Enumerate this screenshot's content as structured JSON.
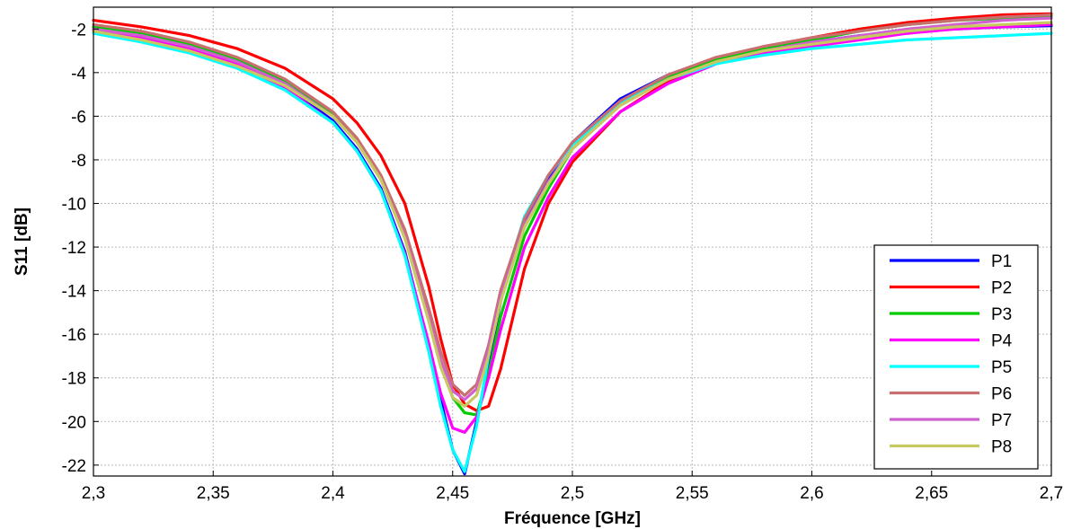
{
  "chart_data": {
    "type": "line",
    "title": "",
    "xlabel": "Fréquence [GHz]",
    "ylabel": "S11 [dB]",
    "xlim": [
      2.3,
      2.7
    ],
    "ylim": [
      -22.5,
      -1
    ],
    "xticks": [
      2.3,
      2.35,
      2.4,
      2.45,
      2.5,
      2.55,
      2.6,
      2.65,
      2.7
    ],
    "xtick_labels": [
      "2,3",
      "2,35",
      "2,4",
      "2,45",
      "2,5",
      "2,55",
      "2,6",
      "2,65",
      "2,7"
    ],
    "yticks": [
      -2,
      -4,
      -6,
      -8,
      -10,
      -12,
      -14,
      -16,
      -18,
      -20,
      -22
    ],
    "ytick_labels": [
      "-2",
      "-4",
      "-6",
      "-8",
      "-10",
      "-12",
      "-14",
      "-16",
      "-18",
      "-20",
      "-22"
    ],
    "grid": true,
    "legend_position": "bottom-right",
    "x": [
      2.3,
      2.32,
      2.34,
      2.36,
      2.38,
      2.4,
      2.41,
      2.42,
      2.43,
      2.44,
      2.445,
      2.45,
      2.455,
      2.46,
      2.465,
      2.47,
      2.48,
      2.49,
      2.5,
      2.52,
      2.54,
      2.56,
      2.58,
      2.6,
      2.62,
      2.64,
      2.66,
      2.68,
      2.7
    ],
    "series": [
      {
        "name": "P1",
        "color": "#0000ff",
        "values": [
          -2.0,
          -2.3,
          -2.8,
          -3.5,
          -4.6,
          -6.2,
          -7.5,
          -9.3,
          -12.2,
          -16.5,
          -19.0,
          -21.3,
          -22.4,
          -20.0,
          -17.5,
          -14.5,
          -10.8,
          -8.8,
          -7.2,
          -5.2,
          -4.1,
          -3.4,
          -2.9,
          -2.6,
          -2.3,
          -2.1,
          -2.0,
          -1.9,
          -1.85
        ]
      },
      {
        "name": "P2",
        "color": "#ff0000",
        "values": [
          -1.6,
          -1.9,
          -2.3,
          -2.9,
          -3.8,
          -5.2,
          -6.3,
          -7.8,
          -10.0,
          -13.8,
          -16.2,
          -18.3,
          -19.2,
          -19.5,
          -19.3,
          -17.6,
          -13.0,
          -10.0,
          -8.1,
          -5.8,
          -4.4,
          -3.4,
          -2.8,
          -2.4,
          -2.0,
          -1.7,
          -1.5,
          -1.35,
          -1.3
        ]
      },
      {
        "name": "P3",
        "color": "#00cc00",
        "values": [
          -1.9,
          -2.2,
          -2.7,
          -3.4,
          -4.4,
          -5.9,
          -7.1,
          -8.8,
          -11.4,
          -15.2,
          -17.3,
          -18.9,
          -19.6,
          -19.7,
          -17.8,
          -15.2,
          -11.5,
          -9.3,
          -7.5,
          -5.4,
          -4.2,
          -3.4,
          -2.9,
          -2.5,
          -2.1,
          -1.8,
          -1.6,
          -1.5,
          -1.4
        ]
      },
      {
        "name": "P4",
        "color": "#ff00ff",
        "values": [
          -2.1,
          -2.4,
          -2.9,
          -3.6,
          -4.7,
          -6.3,
          -7.6,
          -9.4,
          -12.3,
          -16.4,
          -18.7,
          -20.3,
          -20.5,
          -19.8,
          -18.0,
          -15.8,
          -12.0,
          -9.7,
          -7.9,
          -5.8,
          -4.5,
          -3.6,
          -3.1,
          -2.8,
          -2.5,
          -2.2,
          -2.0,
          -1.9,
          -1.8
        ]
      },
      {
        "name": "P5",
        "color": "#00ffff",
        "values": [
          -2.2,
          -2.6,
          -3.1,
          -3.8,
          -4.8,
          -6.3,
          -7.6,
          -9.4,
          -12.4,
          -16.8,
          -19.3,
          -21.3,
          -22.3,
          -20.2,
          -17.0,
          -14.2,
          -10.6,
          -8.7,
          -7.3,
          -5.4,
          -4.3,
          -3.6,
          -3.2,
          -2.9,
          -2.7,
          -2.5,
          -2.4,
          -2.3,
          -2.2
        ]
      },
      {
        "name": "P6",
        "color": "#c87070",
        "values": [
          -1.8,
          -2.1,
          -2.6,
          -3.3,
          -4.3,
          -5.8,
          -7.0,
          -8.7,
          -11.2,
          -14.8,
          -16.8,
          -18.3,
          -18.8,
          -18.3,
          -16.5,
          -14.0,
          -10.7,
          -8.7,
          -7.2,
          -5.3,
          -4.1,
          -3.3,
          -2.8,
          -2.4,
          -2.1,
          -1.8,
          -1.6,
          -1.45,
          -1.35
        ]
      },
      {
        "name": "P7",
        "color": "#d060d0",
        "values": [
          -2.0,
          -2.3,
          -2.8,
          -3.5,
          -4.5,
          -6.0,
          -7.2,
          -8.9,
          -11.5,
          -15.2,
          -17.2,
          -18.6,
          -19.0,
          -18.5,
          -16.7,
          -14.3,
          -11.0,
          -9.0,
          -7.5,
          -5.5,
          -4.3,
          -3.5,
          -3.0,
          -2.6,
          -2.3,
          -2.0,
          -1.8,
          -1.6,
          -1.5
        ]
      },
      {
        "name": "P8",
        "color": "#c8c860",
        "values": [
          -2.1,
          -2.5,
          -3.0,
          -3.7,
          -4.6,
          -6.0,
          -7.2,
          -8.9,
          -11.6,
          -15.4,
          -17.5,
          -18.9,
          -19.3,
          -18.8,
          -17.0,
          -14.5,
          -11.1,
          -9.1,
          -7.5,
          -5.5,
          -4.3,
          -3.5,
          -3.0,
          -2.7,
          -2.4,
          -2.1,
          -1.9,
          -1.8,
          -1.7
        ]
      }
    ]
  }
}
